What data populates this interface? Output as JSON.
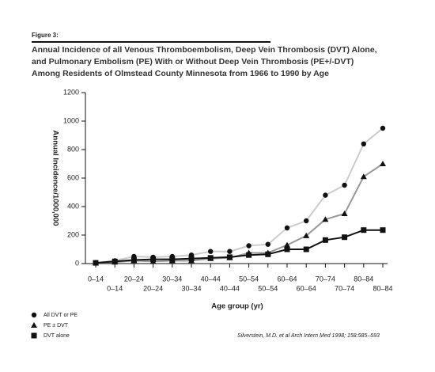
{
  "chart_data": {
    "type": "line",
    "figure_label": "Figure 3:",
    "title_lines": [
      "Annual Incidence of all Venous Thromboembolism, Deep Vein Thrombosis (DVT) Alone,",
      "and Pulmonary Embolism (PE) With or Without Deep Vein Thrombosis (PE+/-DVT)",
      "Among Residents of Olmstead County Minnesota from 1966 to 1990 by Age"
    ],
    "y_label": "Annual Incidence/1000,000",
    "x_label": "Age group (yr)",
    "citation": "Silverstein, M.D. et al Arch Intern Med 1998; 158:585–593",
    "categories": [
      "0–14",
      "0–14",
      "20–24",
      "20–24",
      "30–34",
      "30–34",
      "40–44",
      "40–44",
      "50–54",
      "50–54",
      "60–64",
      "60–64",
      "70–74",
      "70–74",
      "80–84",
      "80–84"
    ],
    "ylim": [
      0,
      1200
    ],
    "yticks": [
      0,
      200,
      400,
      600,
      800,
      1000,
      1200
    ],
    "series": [
      {
        "name": "All DVT or PE",
        "marker": "circle",
        "color": "#cccccc",
        "marker_color": "#111111",
        "values": [
          5,
          20,
          50,
          45,
          50,
          60,
          85,
          85,
          125,
          135,
          250,
          300,
          480,
          550,
          840,
          950
        ]
      },
      {
        "name": "PE ± DVT",
        "marker": "triangle",
        "color": "#999999",
        "marker_color": "#111111",
        "values": [
          5,
          10,
          20,
          15,
          20,
          20,
          35,
          40,
          75,
          75,
          130,
          195,
          310,
          350,
          610,
          700
        ]
      },
      {
        "name": "DVT alone",
        "marker": "square",
        "color": "#111111",
        "marker_color": "#111111",
        "values": [
          5,
          15,
          25,
          30,
          30,
          35,
          40,
          45,
          60,
          65,
          100,
          100,
          165,
          185,
          235,
          235
        ]
      }
    ]
  }
}
